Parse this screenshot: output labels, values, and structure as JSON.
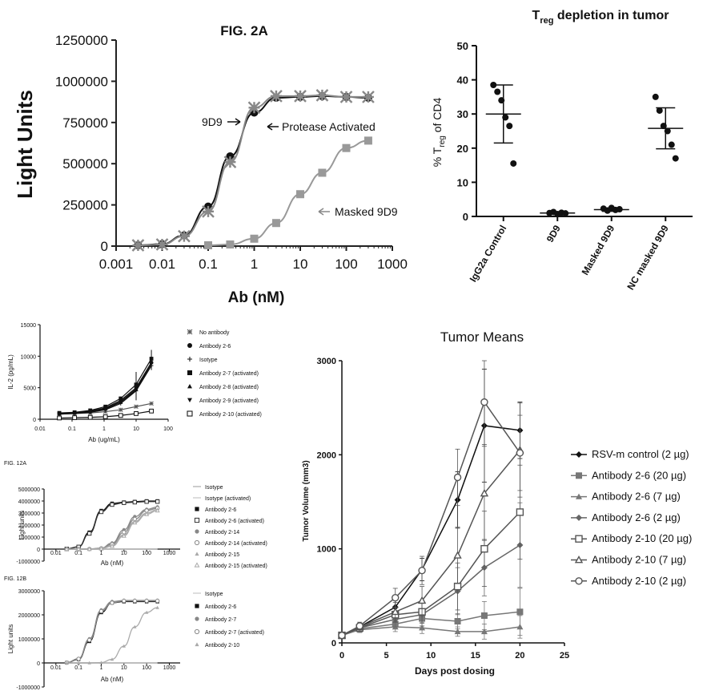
{
  "chart_data": [
    {
      "id": "A",
      "type": "line",
      "title": "FIG. 2A",
      "xlabel": "Ab (nM)",
      "ylabel": "Light Units",
      "xscale": "log",
      "xlim": [
        0.001,
        1000
      ],
      "ylim": [
        0,
        1250000
      ],
      "xticks": [
        0.001,
        0.01,
        0.1,
        1,
        10,
        100,
        1000
      ],
      "xtick_labels": [
        "0.001",
        "0.01",
        "0.1",
        "1",
        "10",
        "100",
        "1000"
      ],
      "yticks": [
        0,
        250000,
        500000,
        750000,
        1000000,
        1250000
      ],
      "ytick_labels": [
        "0",
        "250000",
        "500000",
        "750000",
        "1000000",
        "1250000"
      ],
      "series": [
        {
          "name": "9D9",
          "marker": "circle",
          "color": "#111111",
          "x": [
            0.003,
            0.01,
            0.03,
            0.1,
            0.3,
            1,
            3,
            10,
            30,
            100,
            300
          ],
          "y": [
            5000,
            12000,
            65000,
            240000,
            545000,
            810000,
            900000,
            905000,
            910000,
            905000,
            900000
          ]
        },
        {
          "name": "Protease Activated",
          "marker": "x",
          "color": "#888888",
          "x": [
            0.003,
            0.01,
            0.03,
            0.1,
            0.3,
            1,
            3,
            10,
            30,
            100,
            300
          ],
          "y": [
            5000,
            10000,
            60000,
            210000,
            510000,
            840000,
            910000,
            910000,
            915000,
            905000,
            905000
          ]
        },
        {
          "name": "Masked 9D9",
          "marker": "square",
          "color": "#999999",
          "x": [
            0.1,
            0.3,
            1,
            3,
            10,
            30,
            100,
            300
          ],
          "y": [
            5000,
            10000,
            45000,
            140000,
            315000,
            445000,
            595000,
            640000
          ]
        }
      ],
      "annotations": [
        "9D9",
        "Protease Activated",
        "Masked 9D9"
      ]
    },
    {
      "id": "B",
      "type": "scatter",
      "title_main": "T",
      "title_sub": "reg",
      "title_rest": " depletion in tumor",
      "ylabel_main": "% T",
      "ylabel_sub": "reg",
      "ylabel_rest": " of CD4",
      "categories": [
        "IgG2a Control",
        "9D9",
        "Masked 9D9",
        "NC masked 9D9"
      ],
      "ylim": [
        0,
        50
      ],
      "yticks": [
        0,
        10,
        20,
        30,
        40,
        50
      ],
      "ytick_labels": [
        "0",
        "10",
        "20",
        "30",
        "40",
        "50"
      ],
      "groups": [
        {
          "points": [
            38.5,
            36.5,
            34,
            29,
            26.5,
            15.5
          ],
          "mean": 30,
          "sd_low": 21.5,
          "sd_high": 38.5
        },
        {
          "points": [
            1.0,
            1.3,
            0.7,
            1.1,
            0.9
          ],
          "mean": 1.0,
          "sd_low": 0.7,
          "sd_high": 1.3
        },
        {
          "points": [
            2.3,
            1.7,
            2.5,
            1.9,
            2.1
          ],
          "mean": 2.0,
          "sd_low": 1.5,
          "sd_high": 2.5
        },
        {
          "points": [
            35,
            31,
            26.5,
            25,
            21,
            17
          ],
          "mean": 25.8,
          "sd_low": 19.8,
          "sd_high": 31.8
        }
      ]
    },
    {
      "id": "C",
      "type": "line",
      "xlabel": "Ab (ug/mL)",
      "ylabel": "IL-2 (pg/mL)",
      "xscale": "log",
      "xlim": [
        0.01,
        100
      ],
      "ylim": [
        0,
        15000
      ],
      "xticks": [
        0.01,
        0.1,
        1,
        10,
        100
      ],
      "xtick_labels": [
        "0.01",
        "0.1",
        "1",
        "10",
        "100"
      ],
      "yticks": [
        0,
        5000,
        10000,
        15000
      ],
      "ytick_labels": [
        "0",
        "5000",
        "10000",
        "15000"
      ],
      "x": [
        0.04,
        0.12,
        0.37,
        1.1,
        3.3,
        10,
        30
      ],
      "series": [
        {
          "name": "No antibody",
          "marker": "x",
          "color": "#555555",
          "values": [
            800,
            900,
            1000,
            1200,
            1500,
            2000,
            2500
          ]
        },
        {
          "name": "Antibody 2-6",
          "marker": "circle",
          "color": "#111111",
          "values": [
            900,
            1000,
            1300,
            1800,
            3000,
            5000,
            9000
          ]
        },
        {
          "name": "Isotype",
          "marker": "plus",
          "color": "#111111",
          "values": [
            800,
            900,
            1100,
            1500,
            2500,
            4500,
            8500
          ]
        },
        {
          "name": "Antibody 2-7 (activated)",
          "marker": "square",
          "color": "#111111",
          "values": [
            1000,
            1100,
            1400,
            2000,
            3300,
            5500,
            9600
          ]
        },
        {
          "name": "Antibody 2-8 (activated)",
          "marker": "triangle-up",
          "color": "#111111",
          "values": [
            900,
            1000,
            1200,
            1700,
            2800,
            4800,
            9000
          ]
        },
        {
          "name": "Antibody 2-9 (activated)",
          "marker": "triangle-down",
          "color": "#111111",
          "values": [
            850,
            950,
            1150,
            1600,
            2700,
            4600,
            8800
          ]
        },
        {
          "name": "Antibody 2-10 (activated)",
          "marker": "square-open",
          "color": "#111111",
          "values": [
            200,
            250,
            300,
            400,
            600,
            900,
            1300
          ]
        }
      ]
    },
    {
      "id": "D",
      "type": "line",
      "caption": "FIG. 12A",
      "xlabel": "Ab (nM)",
      "ylabel": "Light units",
      "xscale": "log",
      "xlim": [
        0.003,
        3000
      ],
      "ylim": [
        -1000000,
        5000000
      ],
      "xticks": [
        0.01,
        0.1,
        1,
        10,
        100,
        1000
      ],
      "xtick_labels": [
        "0.01",
        "0.1",
        "1",
        "10",
        "100",
        "1000"
      ],
      "yticks": [
        -1000000,
        0,
        1000000,
        2000000,
        3000000,
        4000000,
        5000000
      ],
      "ytick_labels": [
        "-1000000",
        "0",
        "1000000",
        "2000000",
        "3000000",
        "4000000",
        "5000000"
      ],
      "x": [
        0.03,
        0.1,
        0.3,
        1,
        3,
        10,
        30,
        100,
        300
      ],
      "series": [
        {
          "name": "Isotype",
          "marker": "none",
          "color": "#999999",
          "values": [
            0,
            0,
            0,
            0,
            0,
            0,
            0,
            0,
            0
          ]
        },
        {
          "name": "Isotype (activated)",
          "marker": "none",
          "color": "#bbbbbb",
          "values": [
            0,
            0,
            0,
            0,
            0,
            0,
            0,
            0,
            0
          ]
        },
        {
          "name": "Antibody 2-6",
          "marker": "square",
          "color": "#111111",
          "values": [
            20000,
            200000,
            1400000,
            3200000,
            3800000,
            3900000,
            3950000,
            4000000,
            4000000
          ]
        },
        {
          "name": "Antibody 2-6 (activated)",
          "marker": "square-open",
          "color": "#333333",
          "values": [
            15000,
            180000,
            1300000,
            3100000,
            3700000,
            3850000,
            3900000,
            3950000,
            3950000
          ]
        },
        {
          "name": "Antibody 2-14",
          "marker": "circle",
          "color": "#888888",
          "values": [
            0,
            0,
            10000,
            80000,
            500000,
            1600000,
            2700000,
            3300000,
            3500000
          ]
        },
        {
          "name": "Antibody 2-14 (activated)",
          "marker": "circle-open",
          "color": "#888888",
          "values": [
            0,
            0,
            5000,
            60000,
            400000,
            1400000,
            2500000,
            3200000,
            3400000
          ]
        },
        {
          "name": "Antibody 2-15",
          "marker": "triangle-up",
          "color": "#aaaaaa",
          "values": [
            0,
            0,
            5000,
            40000,
            300000,
            1200000,
            2300000,
            3000000,
            3300000
          ]
        },
        {
          "name": "Antibody 2-15 (activated)",
          "marker": "triangle-open",
          "color": "#aaaaaa",
          "values": [
            0,
            0,
            0,
            30000,
            250000,
            1100000,
            2200000,
            2900000,
            3200000
          ]
        }
      ]
    },
    {
      "id": "E",
      "type": "line",
      "caption": "FIG. 12B",
      "xlabel": "Ab (nM)",
      "ylabel": "Light units",
      "xscale": "log",
      "xlim": [
        0.003,
        3000
      ],
      "ylim": [
        -1000000,
        3000000
      ],
      "xticks": [
        0.01,
        0.1,
        1,
        10,
        100,
        1000
      ],
      "xtick_labels": [
        "0.01",
        "0.1",
        "1",
        "10",
        "100",
        "1000"
      ],
      "yticks": [
        -1000000,
        0,
        1000000,
        2000000,
        3000000
      ],
      "ytick_labels": [
        "-1000000",
        "0",
        "1000000",
        "2000000",
        "3000000"
      ],
      "x": [
        0.03,
        0.1,
        0.3,
        1,
        3,
        10,
        30,
        100,
        300
      ],
      "series": [
        {
          "name": "Isotype",
          "marker": "none",
          "color": "#bbbbbb",
          "values": [
            0,
            0,
            0,
            0,
            0,
            0,
            0,
            0,
            0
          ]
        },
        {
          "name": "Antibody 2-6",
          "marker": "square",
          "color": "#111111",
          "values": [
            10000,
            150000,
            900000,
            2100000,
            2500000,
            2550000,
            2550000,
            2550000,
            2550000
          ]
        },
        {
          "name": "Antibody 2-7",
          "marker": "circle",
          "color": "#888888",
          "values": [
            15000,
            180000,
            1000000,
            2200000,
            2550000,
            2600000,
            2600000,
            2600000,
            2600000
          ]
        },
        {
          "name": "Antibody 2-7 (activated)",
          "marker": "circle-open",
          "color": "#888888",
          "values": [
            12000,
            170000,
            950000,
            2150000,
            2500000,
            2580000,
            2580000,
            2580000,
            2580000
          ]
        },
        {
          "name": "Antibody 2-10",
          "marker": "triangle-up",
          "color": "#aaaaaa",
          "values": [
            0,
            0,
            0,
            15000,
            150000,
            700000,
            1500000,
            2100000,
            2300000
          ]
        }
      ]
    },
    {
      "id": "F",
      "type": "line",
      "title": "Tumor Means",
      "xlabel": "Days post  dosing",
      "ylabel": "Tumor Volume (mm3)",
      "xlim": [
        0,
        25
      ],
      "ylim": [
        0,
        3000
      ],
      "xticks": [
        0,
        5,
        10,
        15,
        20,
        25
      ],
      "xtick_labels": [
        "0",
        "5",
        "10",
        "15",
        "20",
        "25"
      ],
      "yticks": [
        0,
        1000,
        2000,
        3000
      ],
      "ytick_labels": [
        "0",
        "1000",
        "2000",
        "3000"
      ],
      "x": [
        0,
        2,
        6,
        9,
        13,
        16,
        20
      ],
      "series": [
        {
          "name": "RSV-m control (2 µg)",
          "marker": "diamond",
          "color": "#111111",
          "values": [
            80,
            170,
            380,
            780,
            1520,
            2310,
            2260
          ],
          "err": [
            20,
            30,
            80,
            120,
            300,
            600,
            300
          ]
        },
        {
          "name": "Antibody 2-6 (20 µg)",
          "marker": "square",
          "color": "#777777",
          "values": [
            80,
            150,
            200,
            260,
            230,
            290,
            330
          ],
          "err": [
            20,
            30,
            50,
            80,
            80,
            150,
            250
          ]
        },
        {
          "name": "Antibody 2-6 (7 µg)",
          "marker": "triangle-up",
          "color": "#777777",
          "values": [
            80,
            140,
            170,
            160,
            120,
            120,
            170
          ],
          "err": [
            20,
            30,
            50,
            60,
            50,
            80,
            120
          ]
        },
        {
          "name": "Antibody 2-6 (2 µg)",
          "marker": "diamond",
          "color": "#666666",
          "values": [
            80,
            160,
            250,
            300,
            550,
            800,
            1040
          ],
          "err": [
            20,
            40,
            80,
            120,
            250,
            300,
            450
          ]
        },
        {
          "name": "Antibody 2-10 (20 µg)",
          "marker": "square-open",
          "color": "#555555",
          "values": [
            80,
            160,
            300,
            330,
            600,
            1000,
            1390
          ],
          "err": [
            20,
            40,
            80,
            120,
            250,
            400,
            500
          ]
        },
        {
          "name": "Antibody 2-10 (7 µg)",
          "marker": "triangle-open",
          "color": "#555555",
          "values": [
            80,
            170,
            330,
            450,
            930,
            1590,
            2050
          ],
          "err": [
            20,
            40,
            100,
            150,
            300,
            500,
            500
          ]
        },
        {
          "name": "Antibody 2-10 (2 µg)",
          "marker": "circle-open",
          "color": "#555555",
          "values": [
            80,
            180,
            480,
            770,
            1760,
            2560,
            2020
          ],
          "err": [
            20,
            40,
            100,
            150,
            300,
            450,
            400
          ]
        }
      ]
    }
  ]
}
